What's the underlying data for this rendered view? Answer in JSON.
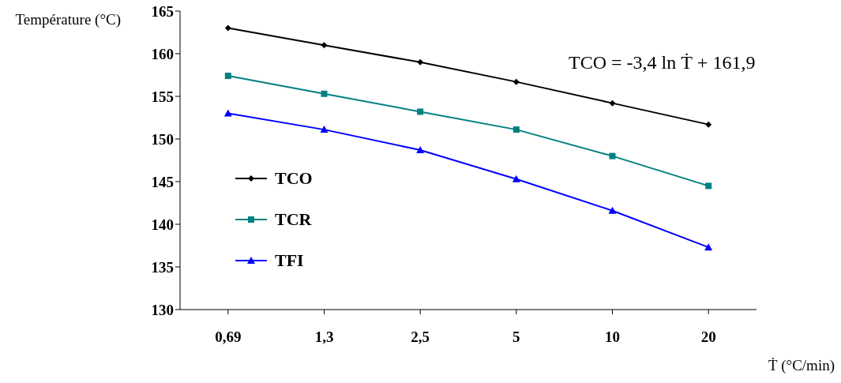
{
  "chart_data": {
    "type": "line",
    "ylabel": "Température (°C)",
    "xlabel": "Ṫ (°C/min)",
    "categories": [
      "0,69",
      "1,3",
      "2,5",
      "5",
      "10",
      "20"
    ],
    "series": [
      {
        "name": "TCO",
        "color": "#000000",
        "marker": "diamond",
        "values": [
          163.0,
          161.0,
          159.0,
          156.7,
          154.2,
          151.7
        ]
      },
      {
        "name": "TCR",
        "color": "#008080",
        "marker": "square",
        "values": [
          157.4,
          155.3,
          153.2,
          151.1,
          148.0,
          144.5
        ]
      },
      {
        "name": "TFI",
        "color": "#0000ff",
        "marker": "triangle",
        "values": [
          153.0,
          151.1,
          148.7,
          145.3,
          141.6,
          137.3
        ]
      }
    ],
    "ylim": [
      130,
      165
    ],
    "yticks": [
      130,
      135,
      140,
      145,
      150,
      155,
      160,
      165
    ],
    "grid": false,
    "legend": "left",
    "line_style": "solid",
    "annotations": [
      "TCO = -3,4 ln Ṫ + 161,9"
    ]
  }
}
